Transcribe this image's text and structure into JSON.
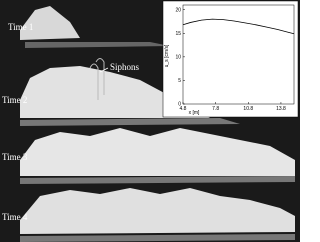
{
  "panels": [
    {
      "label": "Time 1"
    },
    {
      "label": "Time 2"
    },
    {
      "label": "Time 3"
    },
    {
      "label": "Time 4"
    }
  ],
  "annotation": "Siphons",
  "chart_data": {
    "type": "line",
    "xlabel": "x [m]",
    "ylabel": "u_s [cm/s]",
    "x": [
      4.8,
      5.5,
      6.5,
      7.5,
      8.5,
      9.5,
      10.5,
      11.5,
      12.5,
      13.5,
      14.5,
      15
    ],
    "series": [
      {
        "color": "#000000",
        "values": [
          16.8,
          17.3,
          17.8,
          18.0,
          17.9,
          17.6,
          17.2,
          16.8,
          16.3,
          15.8,
          15.2,
          14.9
        ]
      }
    ],
    "xlim": [
      4.8,
      15
    ],
    "ylim": [
      0,
      21
    ],
    "xticks": [
      4.8,
      7.8,
      10.8,
      13.8
    ],
    "yticks": [
      0,
      5,
      10,
      15,
      20
    ]
  }
}
